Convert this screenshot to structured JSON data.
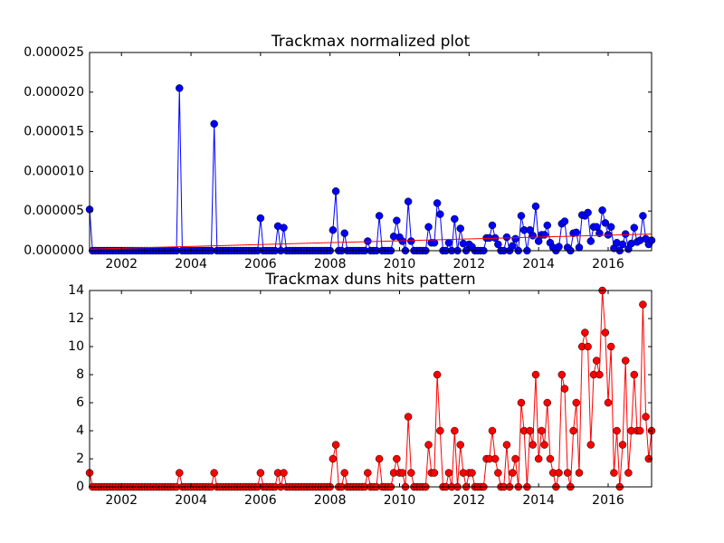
{
  "chart_data": [
    {
      "type": "line",
      "title": "Trackmax normalized plot",
      "x": [
        2001.083,
        2001.167,
        2001.25,
        2001.333,
        2001.417,
        2001.5,
        2001.583,
        2001.667,
        2001.75,
        2001.833,
        2001.917,
        2002,
        2002.083,
        2002.167,
        2002.25,
        2002.333,
        2002.417,
        2002.5,
        2002.583,
        2002.667,
        2002.75,
        2002.833,
        2002.917,
        2003,
        2003.083,
        2003.167,
        2003.25,
        2003.333,
        2003.417,
        2003.5,
        2003.583,
        2003.667,
        2003.75,
        2003.833,
        2003.917,
        2004,
        2004.083,
        2004.167,
        2004.25,
        2004.333,
        2004.417,
        2004.5,
        2004.583,
        2004.667,
        2004.75,
        2004.833,
        2004.917,
        2005,
        2005.083,
        2005.167,
        2005.25,
        2005.333,
        2005.417,
        2005.5,
        2005.583,
        2005.667,
        2005.75,
        2005.833,
        2005.917,
        2006,
        2006.083,
        2006.167,
        2006.25,
        2006.333,
        2006.417,
        2006.5,
        2006.583,
        2006.667,
        2006.75,
        2006.833,
        2006.917,
        2007,
        2007.083,
        2007.167,
        2007.25,
        2007.333,
        2007.417,
        2007.5,
        2007.583,
        2007.667,
        2007.75,
        2007.833,
        2007.917,
        2008,
        2008.083,
        2008.167,
        2008.25,
        2008.333,
        2008.417,
        2008.5,
        2008.583,
        2008.667,
        2008.75,
        2008.833,
        2008.917,
        2009,
        2009.083,
        2009.167,
        2009.25,
        2009.333,
        2009.417,
        2009.5,
        2009.583,
        2009.667,
        2009.75,
        2009.833,
        2009.917,
        2010,
        2010.083,
        2010.167,
        2010.25,
        2010.333,
        2010.417,
        2010.5,
        2010.583,
        2010.667,
        2010.75,
        2010.833,
        2010.917,
        2011,
        2011.083,
        2011.167,
        2011.25,
        2011.333,
        2011.417,
        2011.5,
        2011.583,
        2011.667,
        2011.75,
        2011.833,
        2011.917,
        2012,
        2012.083,
        2012.167,
        2012.25,
        2012.333,
        2012.417,
        2012.5,
        2012.583,
        2012.667,
        2012.75,
        2012.833,
        2012.917,
        2013,
        2013.083,
        2013.167,
        2013.25,
        2013.333,
        2013.417,
        2013.5,
        2013.583,
        2013.667,
        2013.75,
        2013.833,
        2013.917,
        2014,
        2014.083,
        2014.167,
        2014.25,
        2014.333,
        2014.417,
        2014.5,
        2014.583,
        2014.667,
        2014.75,
        2014.833,
        2014.917,
        2015,
        2015.083,
        2015.167,
        2015.25,
        2015.333,
        2015.417,
        2015.5,
        2015.583,
        2015.667,
        2015.75,
        2015.833,
        2015.917,
        2016,
        2016.083,
        2016.167,
        2016.25,
        2016.333,
        2016.417,
        2016.5,
        2016.583,
        2016.667,
        2016.75,
        2016.833,
        2016.917,
        2017,
        2017.083,
        2017.167,
        2017.25
      ],
      "xlim": [
        2001.083,
        2017.25
      ],
      "xticks": [
        2002,
        2004,
        2006,
        2008,
        2010,
        2012,
        2014,
        2016
      ],
      "ylim": [
        0,
        2.5e-05
      ],
      "yticks": [
        {
          "value": 0,
          "label": "0.000000"
        },
        {
          "value": 5e-06,
          "label": "0.000005"
        },
        {
          "value": 1e-05,
          "label": "0.000010"
        },
        {
          "value": 1.5e-05,
          "label": "0.000015"
        },
        {
          "value": 2e-05,
          "label": "0.000020"
        },
        {
          "value": 2.5e-05,
          "label": "0.000025"
        }
      ],
      "series": [
        {
          "color": "#0000ff",
          "values": [
            5.2e-06,
            0,
            0,
            0,
            0,
            0,
            0,
            0,
            0,
            0,
            0,
            0,
            0,
            0,
            0,
            0,
            0,
            0,
            0,
            0,
            0,
            0,
            0,
            0,
            0,
            0,
            0,
            0,
            0,
            0,
            0,
            2.05e-05,
            0,
            0,
            0,
            0,
            0,
            0,
            0,
            0,
            0,
            0,
            0,
            1.6e-05,
            0,
            0,
            0,
            0,
            0,
            0,
            0,
            0,
            0,
            0,
            0,
            0,
            0,
            0,
            0,
            4.1e-06,
            0,
            0,
            0,
            0,
            0,
            3.1e-06,
            0,
            2.9e-06,
            0,
            0,
            0,
            0,
            0,
            0,
            0,
            0,
            0,
            0,
            0,
            0,
            0,
            0,
            0,
            0,
            2.6e-06,
            7.5e-06,
            0,
            0,
            2.2e-06,
            0,
            0,
            0,
            0,
            0,
            0,
            0,
            1.2e-06,
            0,
            0,
            0,
            4.4e-06,
            0,
            0,
            0,
            0,
            1.8e-06,
            3.8e-06,
            1.7e-06,
            1.2e-06,
            0,
            6.2e-06,
            1.2e-06,
            0,
            0,
            0,
            0,
            0,
            3e-06,
            1e-06,
            1e-06,
            6e-06,
            4.6e-06,
            0,
            0,
            1e-06,
            0,
            4e-06,
            0,
            2.8e-06,
            9e-07,
            0,
            8e-07,
            5e-07,
            0,
            0,
            0,
            0,
            1.6e-06,
            1.6e-06,
            3.2e-06,
            1.6e-06,
            8e-07,
            0,
            0,
            1.7e-06,
            0,
            6e-07,
            1.5e-06,
            0,
            4.4e-06,
            2.6e-06,
            0,
            2.6e-06,
            1.9e-06,
            5.6e-06,
            1.2e-06,
            2e-06,
            2e-06,
            3.2e-06,
            1e-06,
            4e-07,
            0,
            5e-07,
            3.4e-06,
            3.7e-06,
            4e-07,
            0,
            2.2e-06,
            2.3e-06,
            4e-07,
            4.5e-06,
            4.4e-06,
            4.8e-06,
            1.2e-06,
            3e-06,
            3e-06,
            2.2e-06,
            5.1e-06,
            3.5e-06,
            2e-06,
            3e-06,
            3e-07,
            1e-06,
            0,
            8e-07,
            2.1e-06,
            2e-07,
            9e-07,
            2.9e-06,
            1.1e-06,
            1.3e-06,
            4.4e-06,
            1.5e-06,
            8e-07,
            1.3e-06
          ]
        }
      ],
      "trend": {
        "color": "#ff0000",
        "x": [
          2001.083,
          2017.25
        ],
        "values": [
          2e-07,
          2.1e-06
        ]
      }
    },
    {
      "type": "line",
      "title": "Trackmax duns hits pattern",
      "x": [
        2001.083,
        2001.167,
        2001.25,
        2001.333,
        2001.417,
        2001.5,
        2001.583,
        2001.667,
        2001.75,
        2001.833,
        2001.917,
        2002,
        2002.083,
        2002.167,
        2002.25,
        2002.333,
        2002.417,
        2002.5,
        2002.583,
        2002.667,
        2002.75,
        2002.833,
        2002.917,
        2003,
        2003.083,
        2003.167,
        2003.25,
        2003.333,
        2003.417,
        2003.5,
        2003.583,
        2003.667,
        2003.75,
        2003.833,
        2003.917,
        2004,
        2004.083,
        2004.167,
        2004.25,
        2004.333,
        2004.417,
        2004.5,
        2004.583,
        2004.667,
        2004.75,
        2004.833,
        2004.917,
        2005,
        2005.083,
        2005.167,
        2005.25,
        2005.333,
        2005.417,
        2005.5,
        2005.583,
        2005.667,
        2005.75,
        2005.833,
        2005.917,
        2006,
        2006.083,
        2006.167,
        2006.25,
        2006.333,
        2006.417,
        2006.5,
        2006.583,
        2006.667,
        2006.75,
        2006.833,
        2006.917,
        2007,
        2007.083,
        2007.167,
        2007.25,
        2007.333,
        2007.417,
        2007.5,
        2007.583,
        2007.667,
        2007.75,
        2007.833,
        2007.917,
        2008,
        2008.083,
        2008.167,
        2008.25,
        2008.333,
        2008.417,
        2008.5,
        2008.583,
        2008.667,
        2008.75,
        2008.833,
        2008.917,
        2009,
        2009.083,
        2009.167,
        2009.25,
        2009.333,
        2009.417,
        2009.5,
        2009.583,
        2009.667,
        2009.75,
        2009.833,
        2009.917,
        2010,
        2010.083,
        2010.167,
        2010.25,
        2010.333,
        2010.417,
        2010.5,
        2010.583,
        2010.667,
        2010.75,
        2010.833,
        2010.917,
        2011,
        2011.083,
        2011.167,
        2011.25,
        2011.333,
        2011.417,
        2011.5,
        2011.583,
        2011.667,
        2011.75,
        2011.833,
        2011.917,
        2012,
        2012.083,
        2012.167,
        2012.25,
        2012.333,
        2012.417,
        2012.5,
        2012.583,
        2012.667,
        2012.75,
        2012.833,
        2012.917,
        2013,
        2013.083,
        2013.167,
        2013.25,
        2013.333,
        2013.417,
        2013.5,
        2013.583,
        2013.667,
        2013.75,
        2013.833,
        2013.917,
        2014,
        2014.083,
        2014.167,
        2014.25,
        2014.333,
        2014.417,
        2014.5,
        2014.583,
        2014.667,
        2014.75,
        2014.833,
        2014.917,
        2015,
        2015.083,
        2015.167,
        2015.25,
        2015.333,
        2015.417,
        2015.5,
        2015.583,
        2015.667,
        2015.75,
        2015.833,
        2015.917,
        2016,
        2016.083,
        2016.167,
        2016.25,
        2016.333,
        2016.417,
        2016.5,
        2016.583,
        2016.667,
        2016.75,
        2016.833,
        2016.917,
        2017,
        2017.083,
        2017.167,
        2017.25
      ],
      "xlim": [
        2001.083,
        2017.25
      ],
      "xticks": [
        2002,
        2004,
        2006,
        2008,
        2010,
        2012,
        2014,
        2016
      ],
      "ylim": [
        0,
        14
      ],
      "yticks": [
        0,
        2,
        4,
        6,
        8,
        10,
        12,
        14
      ],
      "series": [
        {
          "color": "#ff0000",
          "values": [
            1,
            0,
            0,
            0,
            0,
            0,
            0,
            0,
            0,
            0,
            0,
            0,
            0,
            0,
            0,
            0,
            0,
            0,
            0,
            0,
            0,
            0,
            0,
            0,
            0,
            0,
            0,
            0,
            0,
            0,
            0,
            1,
            0,
            0,
            0,
            0,
            0,
            0,
            0,
            0,
            0,
            0,
            0,
            1,
            0,
            0,
            0,
            0,
            0,
            0,
            0,
            0,
            0,
            0,
            0,
            0,
            0,
            0,
            0,
            1,
            0,
            0,
            0,
            0,
            0,
            1,
            0,
            1,
            0,
            0,
            0,
            0,
            0,
            0,
            0,
            0,
            0,
            0,
            0,
            0,
            0,
            0,
            0,
            0,
            2,
            3,
            0,
            0,
            1,
            0,
            0,
            0,
            0,
            0,
            0,
            0,
            1,
            0,
            0,
            0,
            2,
            0,
            0,
            0,
            0,
            1,
            2,
            1,
            1,
            0,
            5,
            1,
            0,
            0,
            0,
            0,
            0,
            3,
            1,
            1,
            8,
            4,
            0,
            0,
            1,
            0,
            4,
            0,
            3,
            1,
            0,
            1,
            1,
            0,
            0,
            0,
            0,
            2,
            2,
            4,
            2,
            1,
            0,
            0,
            3,
            0,
            1,
            2,
            0,
            6,
            4,
            0,
            4,
            3,
            8,
            2,
            4,
            3,
            6,
            2,
            1,
            0,
            1,
            8,
            7,
            1,
            0,
            4,
            6,
            1,
            10,
            11,
            10,
            3,
            8,
            9,
            8,
            14,
            11,
            6,
            10,
            1,
            4,
            0,
            3,
            9,
            1,
            4,
            8,
            4,
            4,
            13,
            5,
            2,
            4
          ]
        }
      ]
    }
  ]
}
